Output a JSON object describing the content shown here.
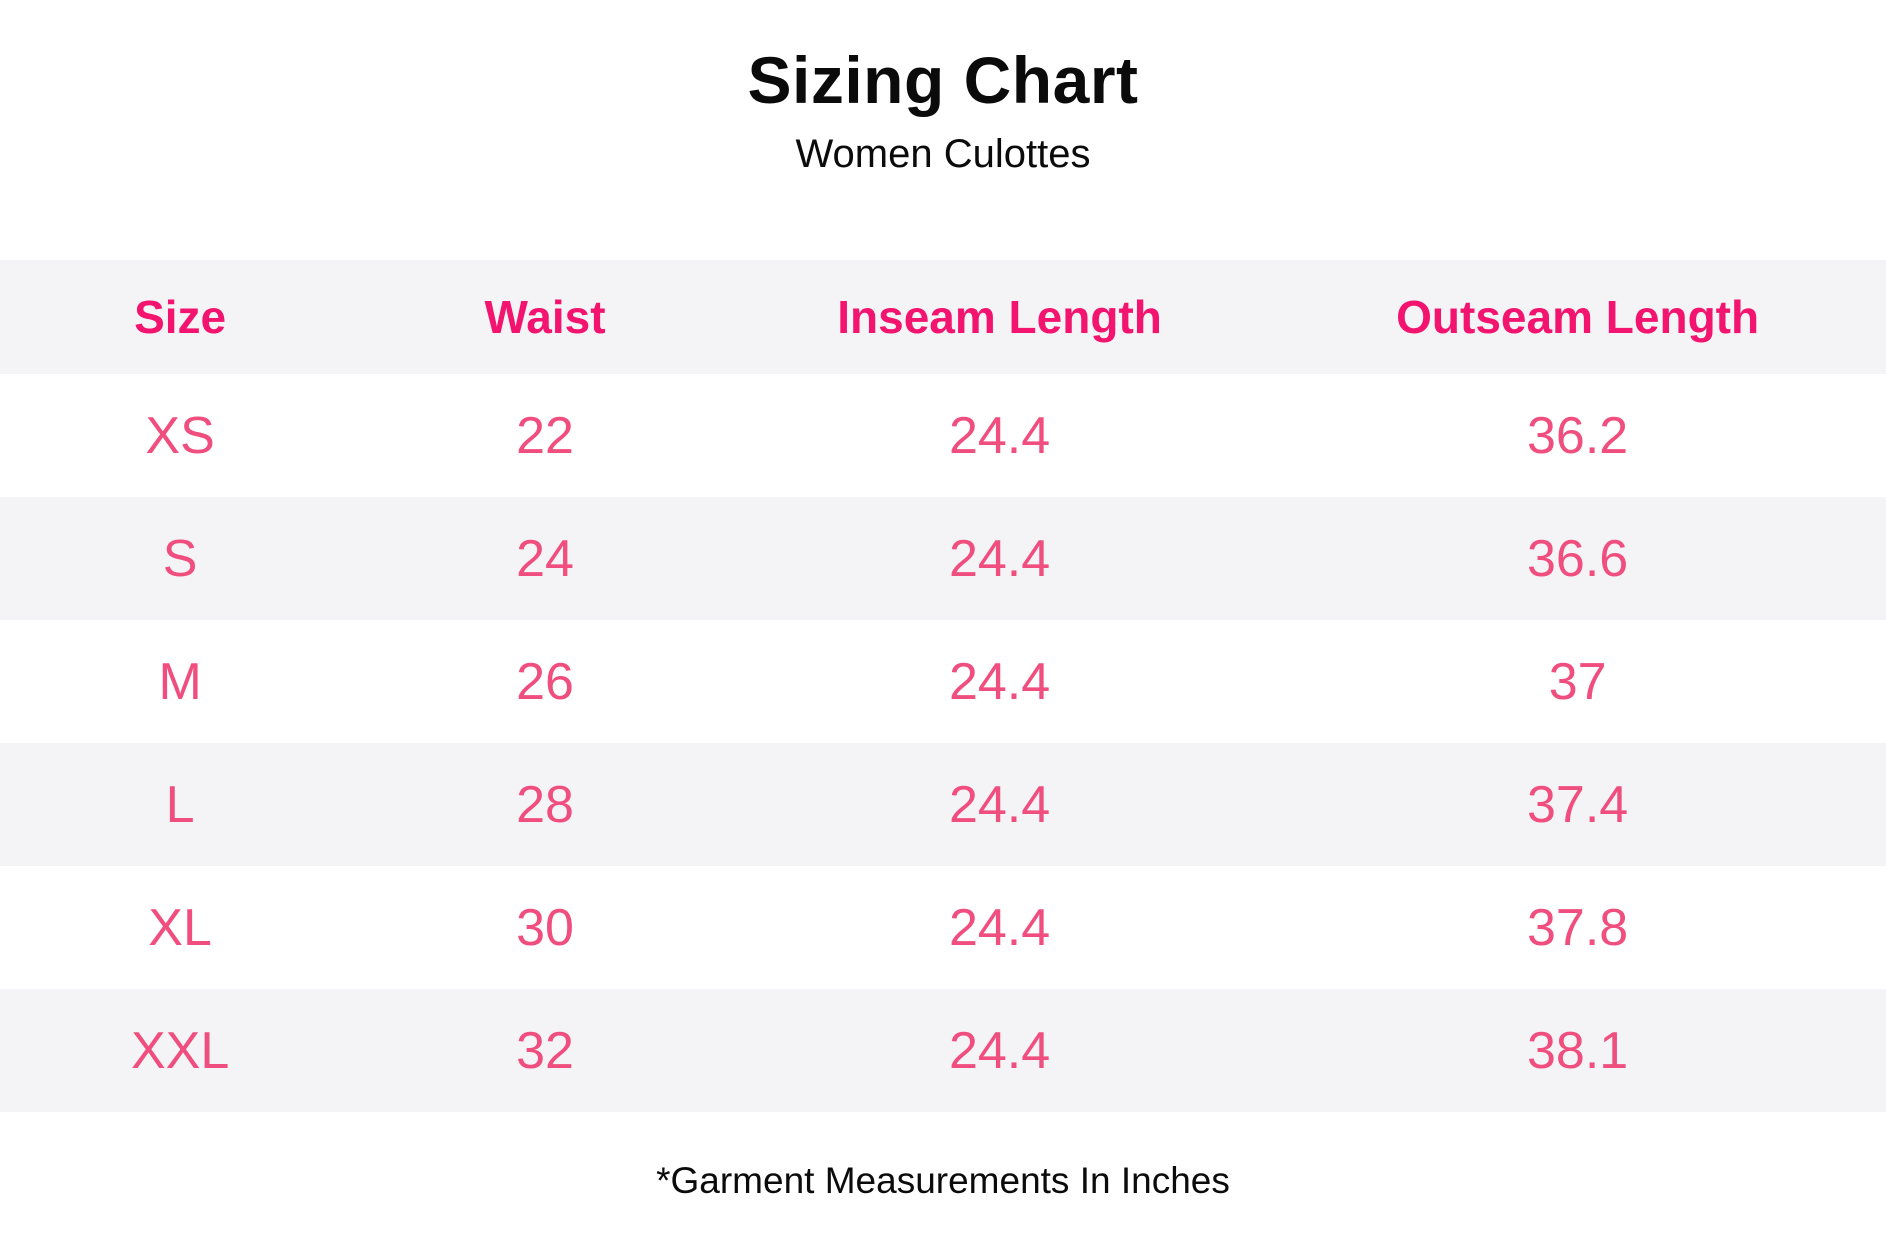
{
  "page": {
    "title": "Sizing Chart",
    "subtitle": "Women Culottes",
    "footnote": "*Garment Measurements In Inches"
  },
  "colors": {
    "header_pink": "#F2146F",
    "value_pink": "#EF4E7E",
    "band_gray": "#F4F4F6",
    "text_black": "#0B0B0B"
  },
  "chart_data": {
    "type": "table",
    "title": "Sizing Chart",
    "subtitle": "Women Culottes",
    "columns": [
      "Size",
      "Waist",
      "Inseam Length",
      "Outseam Length"
    ],
    "rows": [
      [
        "XS",
        "22",
        "24.4",
        "36.2"
      ],
      [
        "S",
        "24",
        "24.4",
        "36.6"
      ],
      [
        "M",
        "26",
        "24.4",
        "37"
      ],
      [
        "L",
        "28",
        "24.4",
        "37.4"
      ],
      [
        "XL",
        "30",
        "24.4",
        "37.8"
      ],
      [
        "XXL",
        "32",
        "24.4",
        "38.1"
      ]
    ],
    "footnote": "*Garment Measurements In Inches",
    "units": "inches",
    "layout": {
      "column_width_percents": [
        19.1,
        19.6,
        28.6,
        32.7
      ],
      "header_band": true,
      "zebra_striping": true
    }
  }
}
